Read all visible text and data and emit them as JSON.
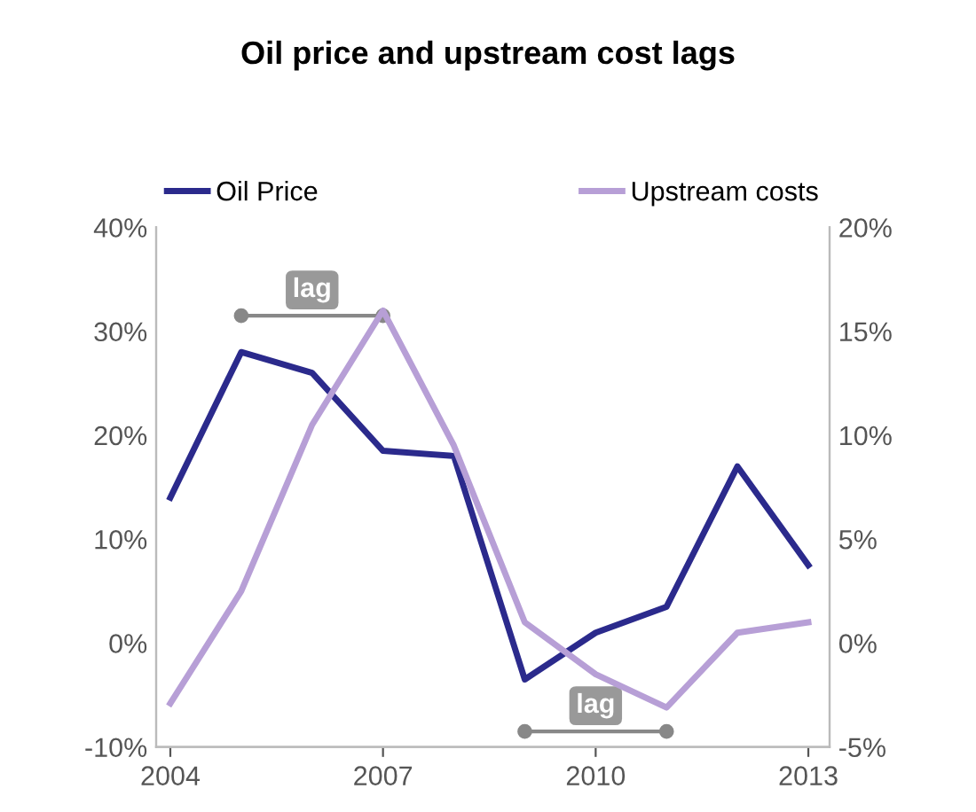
{
  "chart_data": {
    "type": "line",
    "title": "Oil price and upstream cost lags",
    "x": [
      2004,
      2005,
      2006,
      2007,
      2008,
      2009,
      2010,
      2011,
      2012,
      2013
    ],
    "series": [
      {
        "name": "Oil Price",
        "color": "#2b2a8c",
        "values": [
          14,
          28,
          26,
          18.5,
          18,
          -3.5,
          1,
          3.5,
          17,
          7.5
        ]
      },
      {
        "name": "Upstream costs",
        "color": "#b79fd6",
        "axis": "y2",
        "values": [
          -2.9,
          2.5,
          10.5,
          16,
          9.5,
          1,
          -1.5,
          -3.1,
          0.5,
          1
        ]
      }
    ],
    "xlim": [
      2003.8,
      2013.3
    ],
    "xticks": [
      2004,
      2007,
      2010,
      2013
    ],
    "ylim": [
      -10,
      40
    ],
    "yticks": [
      {
        "value": -10,
        "label": "-10%"
      },
      {
        "value": 0,
        "label": "0%"
      },
      {
        "value": 10,
        "label": "10%"
      },
      {
        "value": 20,
        "label": "20%"
      },
      {
        "value": 30,
        "label": "30%"
      },
      {
        "value": 40,
        "label": "40%"
      }
    ],
    "y2lim": [
      -5,
      20
    ],
    "y2ticks": [
      {
        "value": -5,
        "label": "-5%"
      },
      {
        "value": 0,
        "label": "0%"
      },
      {
        "value": 5,
        "label": "5%"
      },
      {
        "value": 10,
        "label": "10%"
      },
      {
        "value": 15,
        "label": "15%"
      },
      {
        "value": 20,
        "label": "20%"
      }
    ],
    "annotations": [
      "lag",
      "lag"
    ],
    "grid": false,
    "legend": "top",
    "marker": "none",
    "line_style": "solid"
  }
}
